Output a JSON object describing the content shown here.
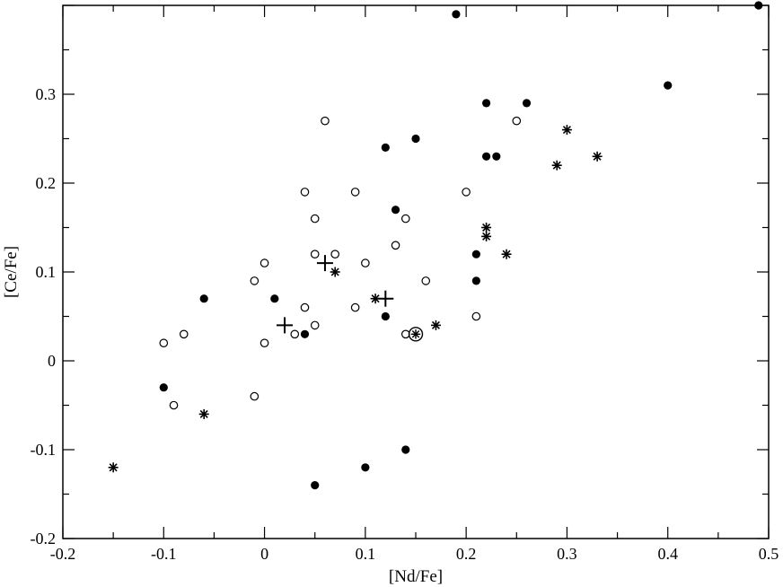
{
  "chart_data": {
    "type": "scatter",
    "xlabel": "[Nd/Fe]",
    "ylabel": "[Ce/Fe]",
    "xlim": [
      -0.2,
      0.5
    ],
    "ylim": [
      -0.2,
      0.4
    ],
    "x_ticks": [
      "-0.2",
      "-0.1",
      "0",
      "0.1",
      "0.2",
      "0.3",
      "0.4",
      "0.5"
    ],
    "y_ticks": [
      "-0.2",
      "-0.1",
      "0",
      "0.1",
      "0.2",
      "0.3"
    ],
    "grid": false,
    "series": [
      {
        "marker": "filled-circle",
        "points": [
          [
            0.19,
            0.39
          ],
          [
            0.49,
            0.4
          ],
          [
            0.4,
            0.31
          ],
          [
            0.22,
            0.29
          ],
          [
            0.26,
            0.29
          ],
          [
            0.12,
            0.24
          ],
          [
            0.15,
            0.25
          ],
          [
            0.22,
            0.23
          ],
          [
            0.23,
            0.23
          ],
          [
            0.13,
            0.17
          ],
          [
            0.21,
            0.12
          ],
          [
            0.21,
            0.09
          ],
          [
            -0.06,
            0.07
          ],
          [
            0.01,
            0.07
          ],
          [
            0.12,
            0.05
          ],
          [
            0.04,
            0.03
          ],
          [
            -0.1,
            -0.03
          ],
          [
            0.14,
            -0.1
          ],
          [
            0.1,
            -0.12
          ],
          [
            0.05,
            -0.14
          ]
        ]
      },
      {
        "marker": "open-circle",
        "points": [
          [
            0.06,
            0.27
          ],
          [
            0.25,
            0.27
          ],
          [
            0.04,
            0.19
          ],
          [
            0.09,
            0.19
          ],
          [
            0.2,
            0.19
          ],
          [
            0.05,
            0.16
          ],
          [
            0.14,
            0.16
          ],
          [
            0.13,
            0.13
          ],
          [
            0.05,
            0.12
          ],
          [
            0.07,
            0.12
          ],
          [
            0.0,
            0.11
          ],
          [
            0.1,
            0.11
          ],
          [
            -0.01,
            0.09
          ],
          [
            0.16,
            0.09
          ],
          [
            0.04,
            0.06
          ],
          [
            0.09,
            0.06
          ],
          [
            0.21,
            0.05
          ],
          [
            0.05,
            0.04
          ],
          [
            -0.08,
            0.03
          ],
          [
            0.03,
            0.03
          ],
          [
            0.14,
            0.03
          ],
          [
            -0.1,
            0.02
          ],
          [
            0.0,
            0.02
          ],
          [
            -0.01,
            -0.04
          ],
          [
            -0.09,
            -0.05
          ]
        ]
      },
      {
        "marker": "asterisk",
        "points": [
          [
            0.3,
            0.26
          ],
          [
            0.29,
            0.22
          ],
          [
            0.33,
            0.23
          ],
          [
            0.22,
            0.15
          ],
          [
            0.22,
            0.14
          ],
          [
            0.24,
            0.12
          ],
          [
            0.07,
            0.1
          ],
          [
            0.11,
            0.07
          ],
          [
            0.17,
            0.04
          ],
          [
            -0.06,
            -0.06
          ],
          [
            -0.15,
            -0.12
          ]
        ]
      },
      {
        "marker": "plus",
        "points": [
          [
            0.06,
            0.11
          ],
          [
            0.12,
            0.07
          ],
          [
            0.02,
            0.04
          ]
        ]
      },
      {
        "marker": "sun",
        "points": [
          [
            0.15,
            0.03
          ]
        ]
      }
    ]
  }
}
